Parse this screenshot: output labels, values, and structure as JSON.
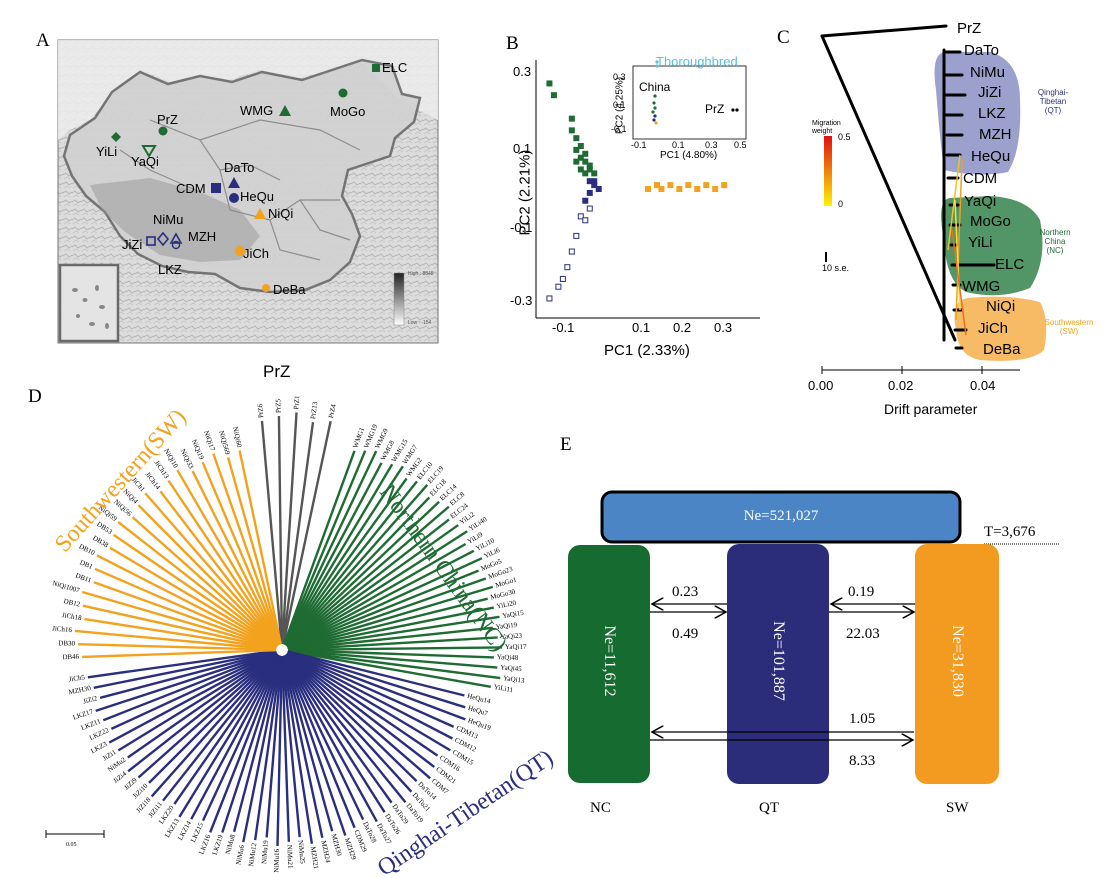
{
  "panel_letters": [
    "A",
    "B",
    "C",
    "D",
    "E"
  ],
  "panel_a": {
    "labels": [
      {
        "text": "ELC"
      },
      {
        "text": "WMG"
      },
      {
        "text": "MoGo"
      },
      {
        "text": "PrZ"
      },
      {
        "text": "YiLi"
      },
      {
        "text": "YaQi"
      },
      {
        "text": "DaTo"
      },
      {
        "text": "CDM"
      },
      {
        "text": "HeQu"
      },
      {
        "text": "NiQi"
      },
      {
        "text": "NiMu"
      },
      {
        "text": "JiZi"
      },
      {
        "text": "MZH"
      },
      {
        "text": "JiCh"
      },
      {
        "text": "LKZ"
      },
      {
        "text": "DeBa"
      }
    ],
    "legend_high": "High : 8848",
    "legend_low": "Low : -154"
  },
  "panel_b": {
    "chart_data": {
      "type": "scatter",
      "xlabel": "PC1 (2.33%)",
      "ylabel": "PC2 (2.21%)",
      "xticks": [
        "-0.1",
        "0.1",
        "0.2",
        "0.3"
      ],
      "yticks": [
        "0.3",
        "0.1",
        "-0.1",
        "-0.3"
      ],
      "xlim": [
        -0.15,
        0.35
      ],
      "ylim": [
        -0.33,
        0.33
      ],
      "colors": {
        "NC": "#1e6b33",
        "QT": "#2a2e7e",
        "SW": "#f2a21c",
        "Thoroughbred": "#5bc0de"
      },
      "groups": [
        {
          "group": "NC",
          "points": [
            [
              -0.12,
              0.27
            ],
            [
              -0.11,
              0.24
            ],
            [
              -0.07,
              0.18
            ],
            [
              -0.07,
              0.15
            ],
            [
              -0.06,
              0.13
            ],
            [
              -0.05,
              0.11
            ],
            [
              -0.06,
              0.1
            ],
            [
              -0.05,
              0.08
            ],
            [
              -0.04,
              0.07
            ],
            [
              -0.03,
              0.06
            ],
            [
              -0.06,
              0.07
            ],
            [
              -0.04,
              0.09
            ],
            [
              -0.03,
              0.05
            ],
            [
              -0.05,
              0.05
            ],
            [
              -0.02,
              0.04
            ],
            [
              -0.04,
              0.04
            ]
          ]
        },
        {
          "group": "QT",
          "points": [
            [
              -0.03,
              0.02
            ],
            [
              -0.02,
              0.01
            ],
            [
              -0.01,
              0.0
            ],
            [
              -0.03,
              -0.01
            ],
            [
              -0.02,
              0.02
            ],
            [
              -0.04,
              -0.03
            ],
            [
              -0.03,
              -0.05
            ],
            [
              -0.05,
              -0.07
            ],
            [
              -0.04,
              -0.08
            ],
            [
              -0.06,
              -0.12
            ],
            [
              -0.07,
              -0.16
            ],
            [
              -0.08,
              -0.2
            ],
            [
              -0.09,
              -0.23
            ],
            [
              -0.1,
              -0.25
            ],
            [
              -0.12,
              -0.28
            ]
          ]
        },
        {
          "group": "SW",
          "points": [
            [
              0.1,
              0.0
            ],
            [
              0.12,
              0.01
            ],
            [
              0.13,
              0.0
            ],
            [
              0.15,
              0.01
            ],
            [
              0.17,
              0.0
            ],
            [
              0.19,
              0.01
            ],
            [
              0.21,
              0.0
            ],
            [
              0.23,
              0.01
            ],
            [
              0.25,
              0.0
            ],
            [
              0.27,
              0.01
            ]
          ]
        }
      ],
      "inset": {
        "xlabel": "PC1 (4.80%)",
        "ylabel": "PC2 (4.25%)",
        "xticks": [
          "-0.1",
          "0.1",
          "0.3",
          "0.5"
        ],
        "yticks": [
          "0.3",
          "0.1",
          "-0.1"
        ],
        "labels": [
          "Thoroughbred",
          "China",
          "PrZ"
        ]
      }
    }
  },
  "panel_c": {
    "chart_data": {
      "type": "tree",
      "xlabel": "Drift parameter",
      "xticks": [
        "0.00",
        "0.02",
        "0.04"
      ],
      "xlim": [
        0.0,
        0.05
      ],
      "leaves": [
        "PrZ",
        "DaTo",
        "NiMu",
        "JiZi",
        "LKZ",
        "MZH",
        "HeQu",
        "CDM",
        "YaQi",
        "MoGo",
        "YiLi",
        "ELC",
        "WMG",
        "NiQi",
        "JiCh",
        "DeBa"
      ],
      "groups": [
        {
          "name": "Qinghai-Tibetan",
          "abbr": "(QT)",
          "color": "#8b8fc4"
        },
        {
          "name": "Northern China",
          "abbr": "(NC)",
          "color": "#3f8a55"
        },
        {
          "name": "Southwestern",
          "abbr": "(SW)",
          "color": "#f6b454"
        }
      ],
      "migration_title": "Migration weight",
      "migration_max": "0.5",
      "migration_min": "0",
      "scale_label": "10 s.e."
    }
  },
  "panel_d": {
    "title": "PrZ",
    "groups": [
      {
        "name": "Northern China(NC)",
        "color": "#1e6b33"
      },
      {
        "name": "Qinghai-Tibetan(QT)",
        "color": "#2a2e7e"
      },
      {
        "name": "Southwestern(SW)",
        "color": "#f2a21c"
      }
    ],
    "prz_leaves": [
      "PrZ6",
      "PrZ5",
      "PrZ1",
      "PrZ13",
      "PrZ4"
    ],
    "nc_leaves": [
      "WMG1",
      "WMG19",
      "WMG9",
      "WMG8",
      "WMG15",
      "WMG7",
      "WMG2",
      "ELC10",
      "ELC19",
      "ELC18",
      "ELC14",
      "ELC8",
      "ELC24",
      "YiLi2",
      "YiLi40",
      "YiLi9",
      "YiLi10",
      "YiLi6",
      "MoGo5",
      "MoGo23",
      "MoGo1",
      "MoGo30",
      "YiLi20",
      "YaQi15",
      "YaQi19",
      "YaQi23",
      "YaQi17",
      "YaQi48",
      "YaQi45",
      "YaQi13",
      "YiLi11"
    ],
    "qt_leaves": [
      "HeQu14",
      "HeQu7",
      "HeQu19",
      "CDM13",
      "CDM12",
      "CDM15",
      "CDM16",
      "CDM21",
      "CDM7",
      "DaTo14",
      "DaTo21",
      "DaTo19",
      "DaTo29",
      "DaTo26",
      "DaTo27",
      "DaTo28",
      "CDM29",
      "MZH29",
      "MZH30",
      "MZH24",
      "MZH21",
      "NiMu25",
      "NiMu21",
      "NiMu16",
      "NiMu19",
      "NiMu12",
      "NiMu6",
      "NiMu8",
      "LKZ19",
      "LKZ16",
      "LKZ15",
      "LKZ14",
      "LKZ13",
      "LKZ20",
      "JiZi11",
      "JiZi18",
      "JiZi10",
      "JiZi9",
      "JiZi4",
      "NiMu2",
      "JiZi1",
      "LKZ3",
      "LKZ22",
      "LKZ11",
      "LKZ17",
      "JiZi2",
      "MZH30",
      "JiCh5"
    ],
    "sw_leaves": [
      "DB46",
      "DB30",
      "JiCh16",
      "JiCh18",
      "DB12",
      "NiQi1007",
      "DB11",
      "DB1",
      "DB10",
      "DB38",
      "DB53",
      "NiQi59",
      "NiQi56",
      "NiQi4",
      "JiCh1",
      "JiCh14",
      "JiCh13",
      "NiQi10",
      "NiQi33",
      "NiQi19",
      "NiQi17",
      "NiQi569",
      "NiQi60"
    ],
    "scale_label": "0.05"
  },
  "panel_e": {
    "ancestor": "Ne=521,027",
    "time": "T=3,676",
    "populations": [
      {
        "ne": "Ne=11,612",
        "label": "NC",
        "color": "#166b30"
      },
      {
        "ne": "Ne=101,887",
        "label": "QT",
        "color": "#2b2d7a"
      },
      {
        "ne": "Ne=31,830",
        "label": "SW",
        "color": "#f39a21"
      }
    ],
    "migrations": {
      "nc_qt_top": "0.23",
      "nc_qt_bottom": "0.49",
      "qt_sw_top": "0.19",
      "qt_sw_bottom": "22.03",
      "nc_sw_top": "1.05",
      "nc_sw_bottom": "8.33"
    },
    "ancestor_color": "#4c85c5"
  }
}
